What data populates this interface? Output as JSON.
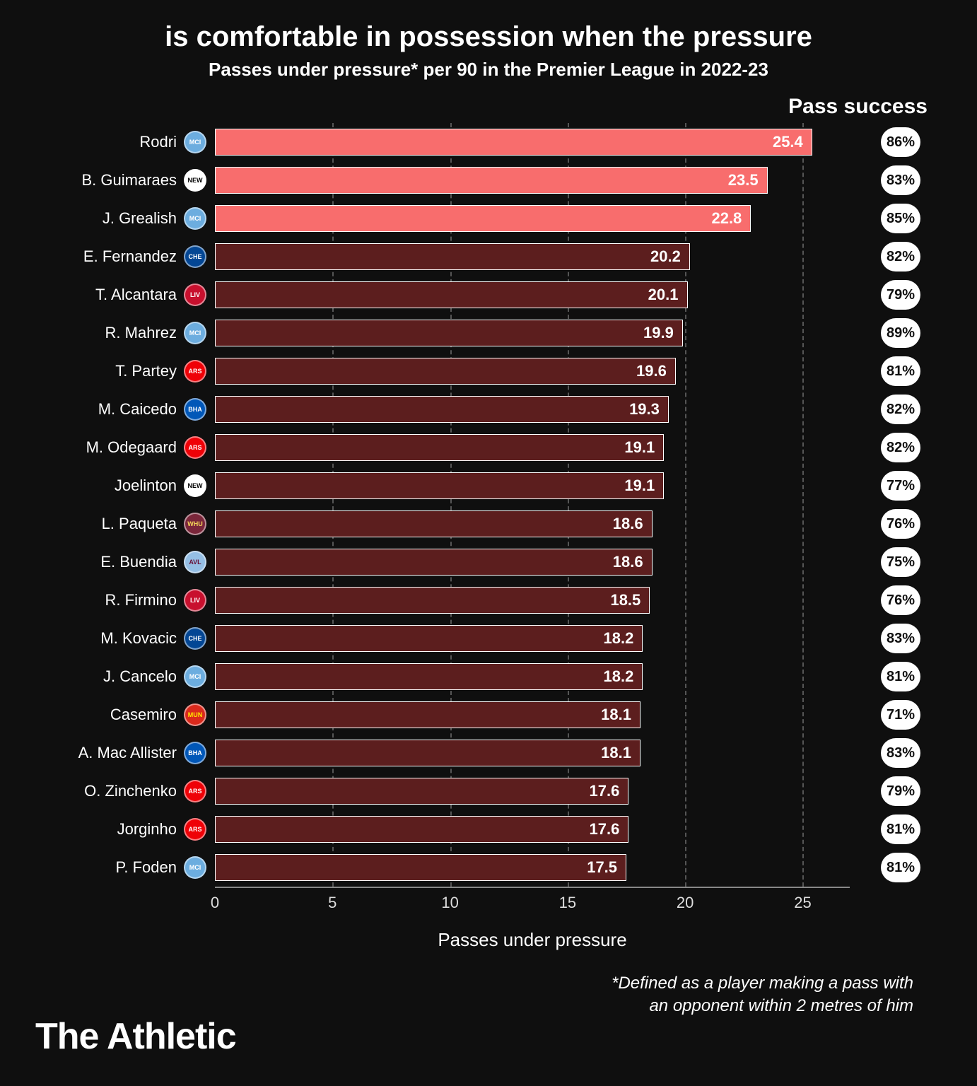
{
  "title": "is comfortable in possession when the pressure",
  "subtitle": "Passes under pressure* per 90 in the Premier League in 2022-23",
  "pass_success_header": "Pass success",
  "x_axis_label": "Passes under pressure",
  "footnote_line1": "*Defined as a player making a pass with",
  "footnote_line2": "an opponent within 2 metres of him",
  "brand": "The Athletic",
  "chart": {
    "type": "bar",
    "xlim": [
      0,
      27
    ],
    "xticks": [
      0,
      5,
      10,
      15,
      20,
      25
    ],
    "bar_border_color": "#ffffff",
    "highlight_color": "#f86d6d",
    "normal_color": "#5c1e1e",
    "background_color": "#0f0f0f",
    "grid_color": "#555555",
    "pill_bg": "#ffffff",
    "pill_text_color": "#0f0f0f",
    "label_fontsize": 22,
    "value_fontsize": 22,
    "axis_fontsize": 22
  },
  "club_colors": {
    "mancity": {
      "bg": "#6caddf",
      "fg": "#ffffff",
      "txt": "MCI"
    },
    "newcastle": {
      "bg": "#ffffff",
      "fg": "#000000",
      "txt": "NEW"
    },
    "chelsea": {
      "bg": "#034694",
      "fg": "#ffffff",
      "txt": "CHE"
    },
    "liverpool": {
      "bg": "#c8102e",
      "fg": "#ffffff",
      "txt": "LIV"
    },
    "arsenal": {
      "bg": "#ef0107",
      "fg": "#ffffff",
      "txt": "ARS"
    },
    "brighton": {
      "bg": "#0057b8",
      "fg": "#ffffff",
      "txt": "BHA"
    },
    "westham": {
      "bg": "#7a263a",
      "fg": "#f3d459",
      "txt": "WHU"
    },
    "astonvilla": {
      "bg": "#95bfe5",
      "fg": "#670e36",
      "txt": "AVL"
    },
    "manutd": {
      "bg": "#da291c",
      "fg": "#ffe500",
      "txt": "MUN"
    }
  },
  "players": [
    {
      "name": "Rodri",
      "club": "mancity",
      "value": 25.4,
      "success": "86%",
      "highlight": true
    },
    {
      "name": "B. Guimaraes",
      "club": "newcastle",
      "value": 23.5,
      "success": "83%",
      "highlight": true
    },
    {
      "name": "J. Grealish",
      "club": "mancity",
      "value": 22.8,
      "success": "85%",
      "highlight": true
    },
    {
      "name": "E. Fernandez",
      "club": "chelsea",
      "value": 20.2,
      "success": "82%",
      "highlight": false
    },
    {
      "name": "T. Alcantara",
      "club": "liverpool",
      "value": 20.1,
      "success": "79%",
      "highlight": false
    },
    {
      "name": "R. Mahrez",
      "club": "mancity",
      "value": 19.9,
      "success": "89%",
      "highlight": false
    },
    {
      "name": "T. Partey",
      "club": "arsenal",
      "value": 19.6,
      "success": "81%",
      "highlight": false
    },
    {
      "name": "M. Caicedo",
      "club": "brighton",
      "value": 19.3,
      "success": "82%",
      "highlight": false
    },
    {
      "name": "M. Odegaard",
      "club": "arsenal",
      "value": 19.1,
      "success": "82%",
      "highlight": false
    },
    {
      "name": "Joelinton",
      "club": "newcastle",
      "value": 19.1,
      "success": "77%",
      "highlight": false
    },
    {
      "name": "L. Paqueta",
      "club": "westham",
      "value": 18.6,
      "success": "76%",
      "highlight": false
    },
    {
      "name": "E. Buendia",
      "club": "astonvilla",
      "value": 18.6,
      "success": "75%",
      "highlight": false
    },
    {
      "name": "R. Firmino",
      "club": "liverpool",
      "value": 18.5,
      "success": "76%",
      "highlight": false
    },
    {
      "name": "M. Kovacic",
      "club": "chelsea",
      "value": 18.2,
      "success": "83%",
      "highlight": false
    },
    {
      "name": "J. Cancelo",
      "club": "mancity",
      "value": 18.2,
      "success": "81%",
      "highlight": false
    },
    {
      "name": "Casemiro",
      "club": "manutd",
      "value": 18.1,
      "success": "71%",
      "highlight": false
    },
    {
      "name": "A. Mac Allister",
      "club": "brighton",
      "value": 18.1,
      "success": "83%",
      "highlight": false
    },
    {
      "name": "O. Zinchenko",
      "club": "arsenal",
      "value": 17.6,
      "success": "79%",
      "highlight": false
    },
    {
      "name": "Jorginho",
      "club": "arsenal",
      "value": 17.6,
      "success": "81%",
      "highlight": false
    },
    {
      "name": "P. Foden",
      "club": "mancity",
      "value": 17.5,
      "success": "81%",
      "highlight": false
    }
  ]
}
